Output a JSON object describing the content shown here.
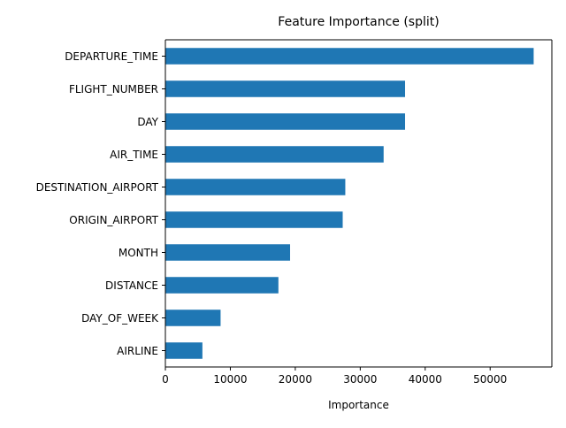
{
  "chart_data": {
    "type": "bar",
    "orientation": "horizontal",
    "title": "Feature Importance (split)",
    "xlabel": "Importance",
    "ylabel": "",
    "xlim": [
      0,
      59500
    ],
    "x_ticks": [
      0,
      10000,
      20000,
      30000,
      40000,
      50000
    ],
    "x_tick_labels": [
      "0",
      "10000",
      "20000",
      "30000",
      "40000",
      "50000"
    ],
    "grid": false,
    "bar_color": "#1f77b4",
    "categories": [
      "DEPARTURE_TIME",
      "FLIGHT_NUMBER",
      "DAY",
      "AIR_TIME",
      "DESTINATION_AIRPORT",
      "ORIGIN_AIRPORT",
      "MONTH",
      "DISTANCE",
      "DAY_OF_WEEK",
      "AIRLINE"
    ],
    "values": [
      56700,
      36900,
      36900,
      33600,
      27700,
      27300,
      19200,
      17400,
      8500,
      5700
    ]
  }
}
